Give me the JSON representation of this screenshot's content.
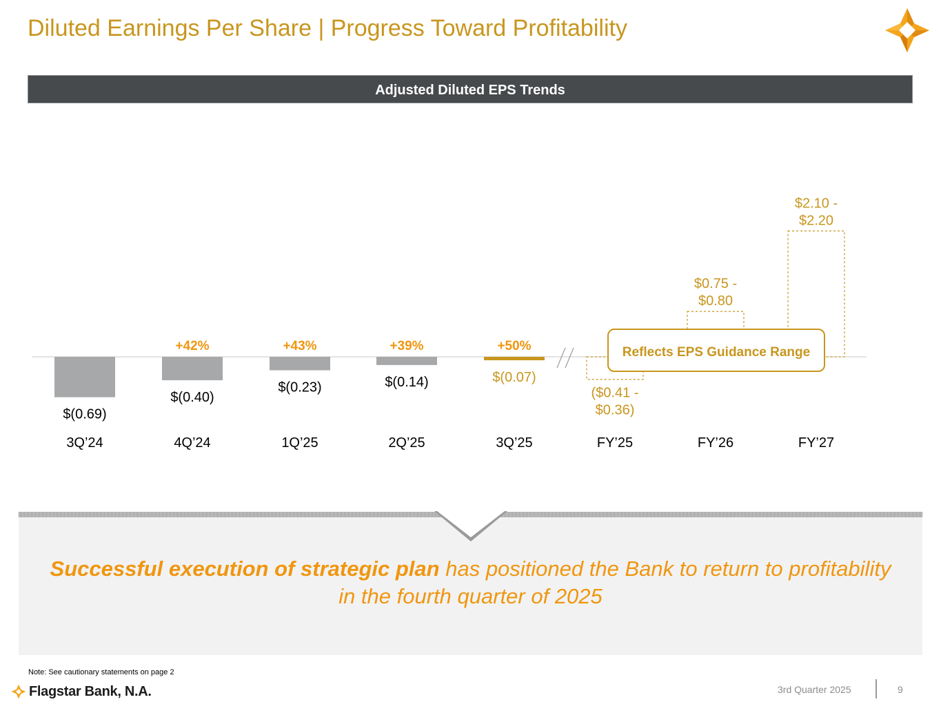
{
  "slide": {
    "title": "Diluted Earnings Per Share | Progress Toward Profitability",
    "banner": "Adjusted Diluted EPS Trends",
    "takeaway_bold": "Successful execution of strategic plan",
    "takeaway_rest": " has positioned the Bank to return to profitability in the fourth quarter of 2025",
    "note": "Note: See cautionary statements on page 2",
    "company": "Flagstar Bank, N.A.",
    "period": "3rd Quarter 2025",
    "page_number": "9"
  },
  "colors": {
    "accent": "#c8961e",
    "accent_bright": "#f0960f",
    "bar_gray": "#a6a8a9",
    "banner_dark": "#474a4c"
  },
  "chart_data": {
    "type": "bar",
    "title": "Adjusted Diluted EPS Trends",
    "unit": "$ per share",
    "ylim": [
      -0.8,
      2.5
    ],
    "grid": false,
    "actuals": [
      {
        "category": "3Q’24",
        "value": -0.69,
        "label": "$(0.69)",
        "change": ""
      },
      {
        "category": "4Q’24",
        "value": -0.4,
        "label": "$(0.40)",
        "change": "+42%"
      },
      {
        "category": "1Q’25",
        "value": -0.23,
        "label": "$(0.23)",
        "change": "+43%"
      },
      {
        "category": "2Q’25",
        "value": -0.14,
        "label": "$(0.14)",
        "change": "+39%"
      },
      {
        "category": "3Q’25",
        "value": -0.07,
        "label": "$(0.07)",
        "change": "+50%",
        "highlight": true
      }
    ],
    "guidance": [
      {
        "category": "FY’25",
        "low": -0.41,
        "high": -0.36,
        "label_line1": "($0.41 -",
        "label_line2": "$0.36)"
      },
      {
        "category": "FY’26",
        "low": 0.75,
        "high": 0.8,
        "label_line1": "$0.75 -",
        "label_line2": "$0.80"
      },
      {
        "category": "FY’27",
        "low": 2.1,
        "high": 2.2,
        "label_line1": "$2.10 -",
        "label_line2": "$2.20"
      }
    ],
    "guidance_callout": "Reflects EPS Guidance Range"
  }
}
